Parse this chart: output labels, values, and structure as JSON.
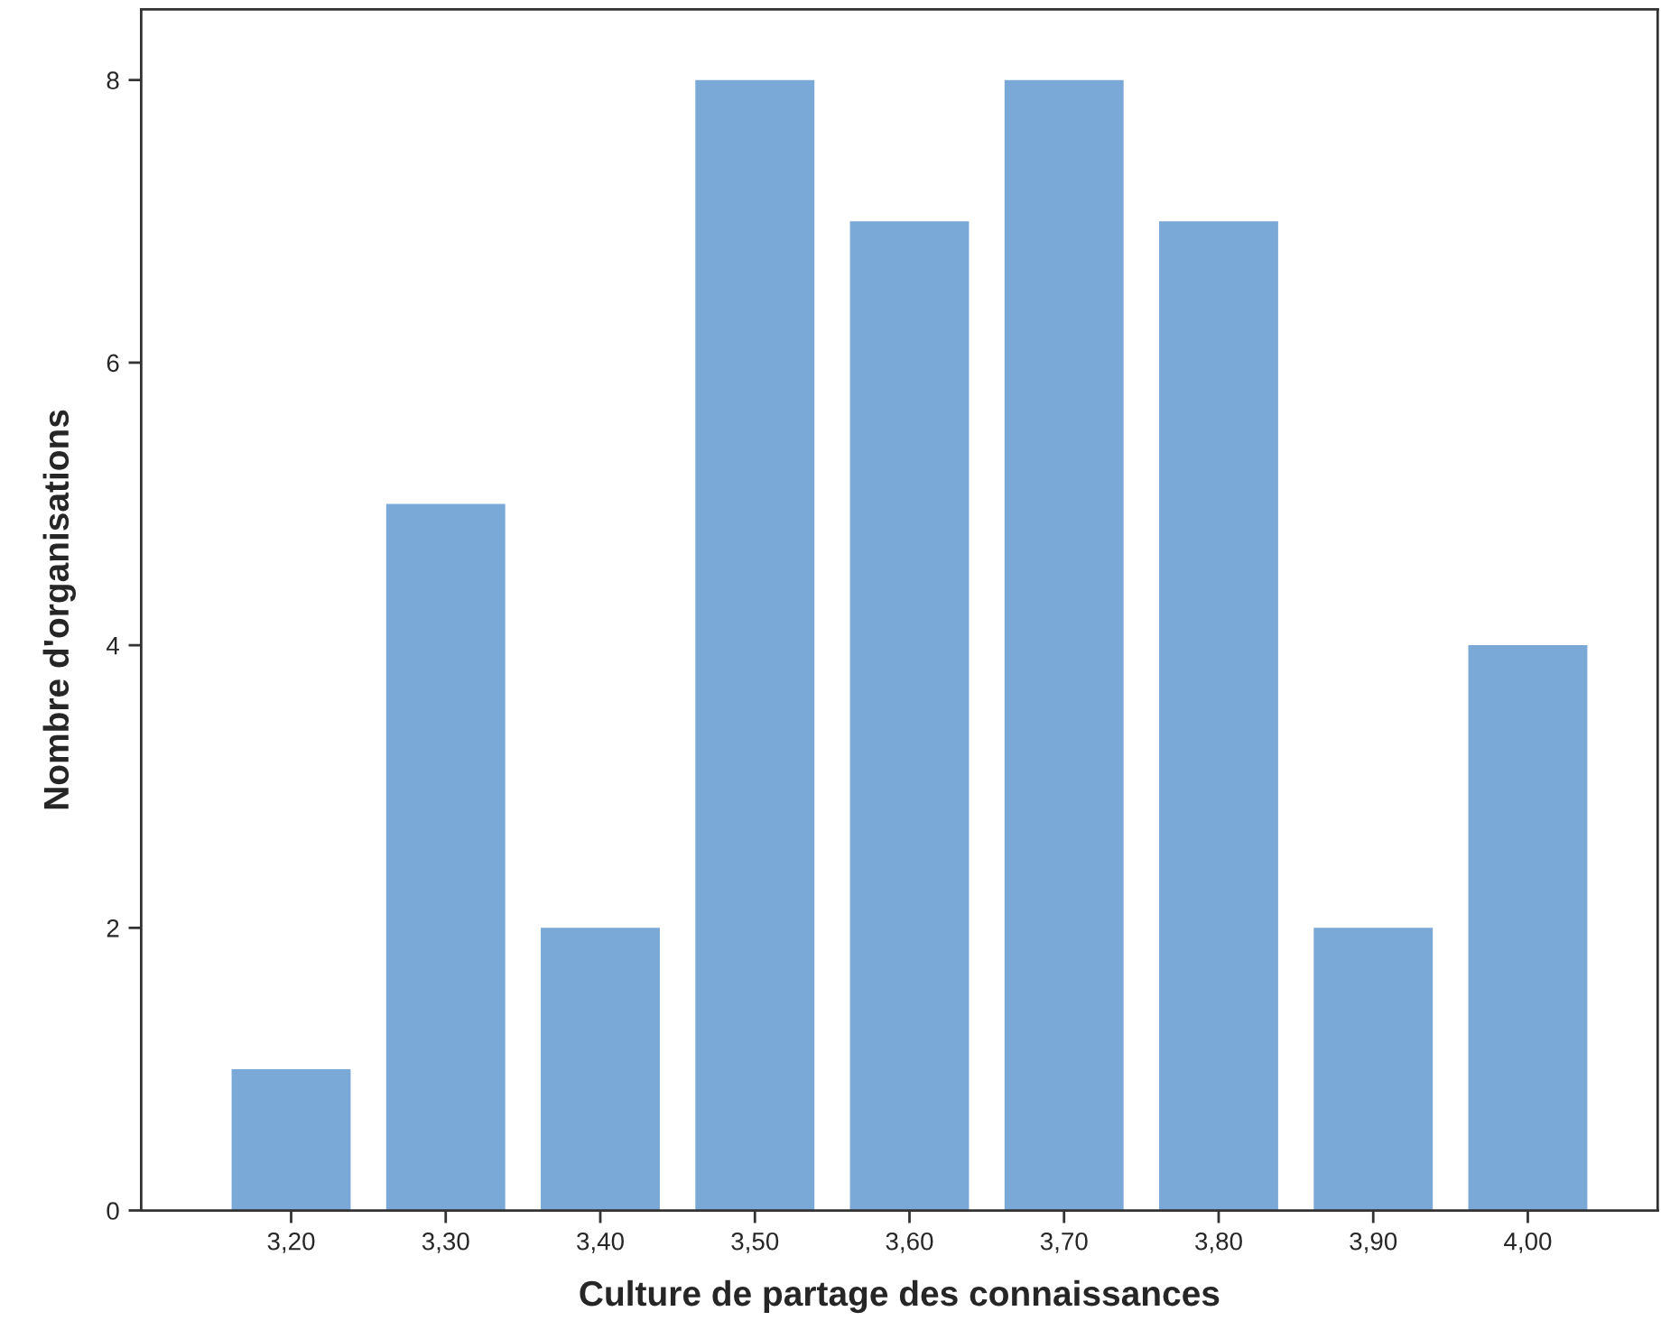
{
  "chart_data": {
    "type": "bar",
    "xlabel": "Culture de partage des connaissances",
    "ylabel": "Nombre d'organisations",
    "categories": [
      "3,20",
      "3,30",
      "3,40",
      "3,50",
      "3,60",
      "3,70",
      "3,80",
      "3,90",
      "4,00"
    ],
    "values": [
      1,
      5,
      2,
      8,
      7,
      8,
      7,
      2,
      4
    ],
    "color": "#7aa8d7",
    "ylim": [
      0,
      8.5
    ],
    "yticks": [
      0,
      2,
      4,
      6,
      8
    ],
    "grid": false,
    "legend": false
  }
}
